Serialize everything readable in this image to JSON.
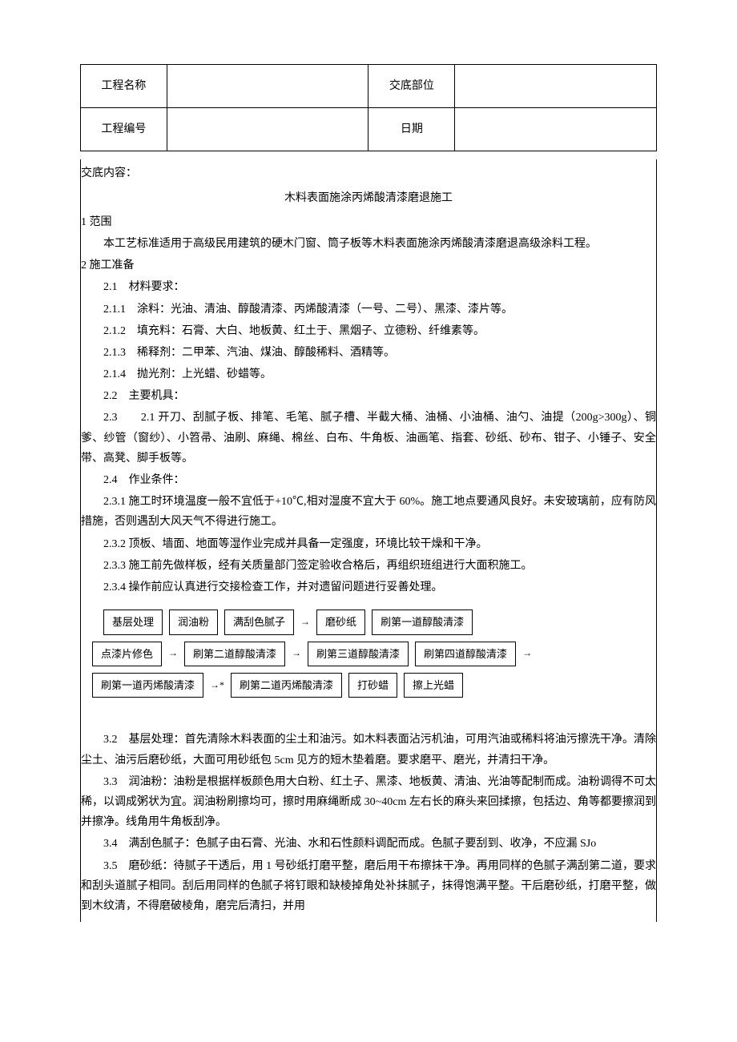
{
  "header": {
    "project_name_label": "工程名称",
    "project_name_value": "",
    "location_label": "交底部位",
    "location_value": "",
    "project_no_label": "工程编号",
    "project_no_value": "",
    "date_label": "日期",
    "date_value": ""
  },
  "content_header": "交底内容：",
  "title": "木料表面施涂丙烯酸清漆磨退施工",
  "section1": {
    "num": "1 范围",
    "text": "本工艺标准适用于高级民用建筑的硬木门窗、筒子板等木料表面施涂丙烯酸清漆磨退高级涂料工程。"
  },
  "section2": {
    "num": "2 施工准备",
    "s2_1": "2.1　材料要求：",
    "s2_1_1": "2.1.1　涂料：光油、清油、醇酸清漆、丙烯酸清漆（一号、二号）、黑漆、漆片等。",
    "s2_1_2": "2.1.2　填充料：石膏、大白、地板黄、红土于、黑烟子、立德粉、纤维素等。",
    "s2_1_3": "2.1.3　稀释剂：二甲苯、汽油、煤油、醇酸稀料、酒精等。",
    "s2_1_4": "2.1.4　抛光剂：上光蜡、砂蜡等。",
    "s2_2": "2.2　主要机具：",
    "s2_3": "2.3　　2.1 开刀、刮腻子板、排笔、毛笔、腻子槽、半截大桶、油桶、小油桶、油勺、油提（200g>300g）、铜爹、纱管（窗纱）、小笤帚、油刷、麻绳、棉丝、白布、牛角板、油画笔、指套、砂纸、砂布、钳子、小锤子、安全带、高凳、脚手板等。",
    "s2_4": "2.4　作业条件：",
    "s2_3_1": "2.3.1 施工时环境温度一般不宜低于+10℃,相对湿度不宜大于 60%。施工地点要通风良好。未安玻璃前，应有防风措施，否则遇刮大风天气不得进行施工。",
    "s2_3_2": "2.3.2 顶板、墙面、地面等湿作业完成并具备一定强度，环境比较干燥和干净。",
    "s2_3_3": "2.3.3 施工前先做样板，经有关质量部门签定验收合格后，再组织班组进行大面积施工。",
    "s2_3_4": "2.3.4 操作前应认真进行交接检查工作，并对遗留问题进行妥善处理。"
  },
  "flowchart": {
    "row1": [
      "基层处理",
      "润油粉",
      "满刮色腻子",
      "磨砂纸",
      "刷第一道醇酸清漆"
    ],
    "row2": [
      "点漆片修色",
      "刷第二道醇酸清漆",
      "刷第三道醇酸清漆",
      "刷第四道醇酸清漆"
    ],
    "row3": [
      "刷第一道丙烯酸清漆",
      "刷第二道丙烯酸清漆",
      "打砂蜡",
      "擦上光蜡"
    ],
    "arrow": "→",
    "arrow_small": "→",
    "arrow_star": "→*"
  },
  "section3": {
    "s3_2": "3.2　基层处理：首先清除木料表面的尘土和油污。如木料表面沾污机油，可用汽油或稀料将油污擦洗干净。清除尘土、油污后磨砂纸，大面可用砂纸包 5cm 见方的短木垫着磨。要求磨平、磨光，并清扫干净。",
    "s3_3": "3.3　润油粉：油粉是根据样板颜色用大白粉、红土子、黑漆、地板黄、清油、光油等配制而成。油粉调得不可太稀，以调成粥状为宜。润油粉刷擦均可，擦时用麻绳断成 30~40cm 左右长的麻头来回揉擦，包括边、角等都要擦润到并擦净。线角用牛角板刮净。",
    "s3_4": "3.4　满刮色腻子：色腻子由石膏、光油、水和石性颜料调配而成。色腻子要刮到、收净，不应漏 SJo",
    "s3_5": "3.5　磨砂纸：待腻子干透后，用 1 号砂纸打磨平整，磨后用干布擦抹干净。再用同样的色腻子满刮第二道，要求和刮头道腻子相同。刮后用同样的色腻子将钉眼和缺棱掉角处补抹腻子，抹得饱满平整。干后磨砂纸，打磨平整，做到木纹清，不得磨破棱角，磨完后清扫，并用"
  }
}
